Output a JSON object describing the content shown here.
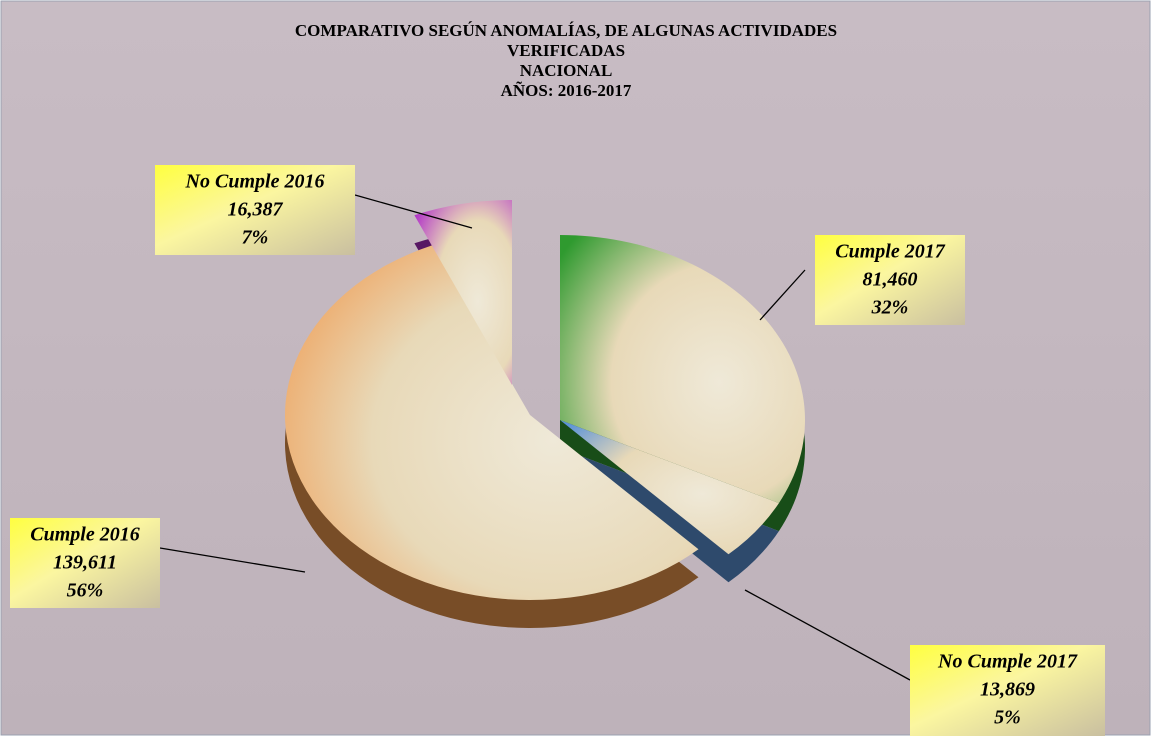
{
  "chart_data": {
    "type": "pie",
    "title": [
      "COMPARATIVO SEGÚN ANOMALÍAS, DE ALGUNAS ACTIVIDADES",
      "VERIFICADAS",
      "NACIONAL",
      "AÑOS: 2016-2017"
    ],
    "categories": [
      "Cumple 2017",
      "No Cumple 2017",
      "Cumple 2016",
      "No Cumple 2016"
    ],
    "values": [
      81460,
      13869,
      139611,
      16387
    ],
    "value_labels": [
      "81,460",
      "13,869",
      "139,611",
      "16,387"
    ],
    "percents": [
      32,
      5,
      56,
      7
    ],
    "percent_labels": [
      "32%",
      "5%",
      "56%",
      "7%"
    ],
    "colors": [
      "#2f9a2f",
      "#5b93d8",
      "#f0994e",
      "#b030c8"
    ]
  }
}
